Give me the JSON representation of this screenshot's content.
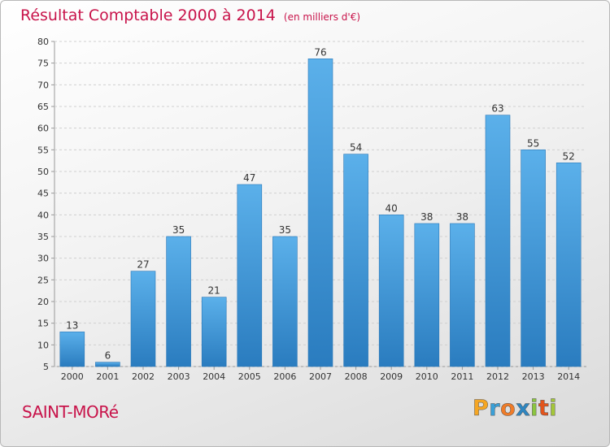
{
  "chart_data": {
    "type": "bar",
    "title": "Résultat Comptable 2000 à 2014",
    "subtitle": "(en milliers d'€)",
    "categories": [
      "2000",
      "2001",
      "2002",
      "2003",
      "2004",
      "2005",
      "2006",
      "2007",
      "2008",
      "2009",
      "2010",
      "2011",
      "2012",
      "2013",
      "2014"
    ],
    "values": [
      13,
      6,
      27,
      35,
      21,
      47,
      35,
      76,
      54,
      40,
      38,
      38,
      63,
      55,
      52
    ],
    "ylim": [
      5,
      80
    ],
    "yticks": [
      5,
      10,
      15,
      20,
      25,
      30,
      35,
      40,
      45,
      50,
      55,
      60,
      65,
      70,
      75,
      80
    ],
    "grid": true,
    "xlabel": "",
    "ylabel": ""
  },
  "location": "SAINT-MORé",
  "brand": {
    "letters": [
      "P",
      "r",
      "o",
      "x",
      "i",
      "t",
      "i"
    ],
    "colors": [
      "#f5a623",
      "#3aa0d8",
      "#f07c28",
      "#2e86c1",
      "#8cc63f",
      "#e2541b",
      "#a4c639"
    ]
  },
  "colors": {
    "bar": "#3d93d6",
    "title": "#c8134a"
  }
}
